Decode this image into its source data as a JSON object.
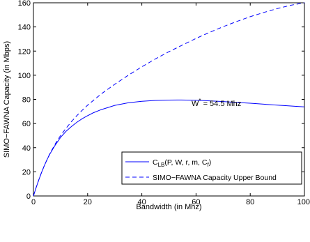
{
  "chart_data": {
    "type": "line",
    "xlabel": "Bandwidth (in Mhz)",
    "ylabel": "SIMO−FAWNA Capacity (in Mbps)",
    "xlim": [
      0,
      100
    ],
    "ylim": [
      0,
      160
    ],
    "xticks": [
      0,
      20,
      40,
      60,
      80,
      100
    ],
    "yticks": [
      0,
      20,
      40,
      60,
      80,
      100,
      120,
      140,
      160
    ],
    "grid": false,
    "legend_position": "lower-right",
    "series": [
      {
        "name": "C_LB(P, W, r, m, C_f)",
        "legend_main": "C",
        "legend_sub": "LB",
        "legend_rest": "(P, W, r, m, C",
        "legend_sub2": "f",
        "legend_close": ")",
        "style": "solid",
        "color": "#0000ff",
        "x": [
          0,
          1,
          2,
          3,
          4,
          5,
          6,
          8,
          10,
          12,
          14,
          16,
          18,
          20,
          22,
          25,
          30,
          35,
          40,
          45,
          50,
          54.5,
          60,
          65,
          70,
          75,
          80,
          85,
          90,
          95,
          100
        ],
        "y": [
          0,
          7,
          13.5,
          19.5,
          25,
          30,
          34.5,
          42,
          48.5,
          53.5,
          57.5,
          61,
          64,
          66.5,
          68.8,
          71.5,
          75,
          77.2,
          78.4,
          79.1,
          79.45,
          79.5,
          79.3,
          78.8,
          78.2,
          77.5,
          76.8,
          76,
          75.2,
          74.5,
          73.8
        ]
      },
      {
        "name": "SIMO−FAWNA Capacity Upper Bound",
        "style": "dashed",
        "color": "#0000ff",
        "x": [
          0,
          1,
          2,
          3,
          4,
          5,
          6,
          8,
          10,
          12,
          14,
          16,
          18,
          20,
          25,
          30,
          35,
          40,
          45,
          50,
          55,
          60,
          65,
          70,
          75,
          80,
          85,
          90,
          95,
          100
        ],
        "y": [
          0,
          7,
          13.5,
          19.5,
          25,
          30,
          34.8,
          43,
          50,
          56,
          61.5,
          66.5,
          71,
          75.2,
          84.5,
          92.5,
          100,
          107,
          113.5,
          119.5,
          125,
          130.5,
          135.5,
          140.2,
          144.5,
          148.5,
          152,
          155.2,
          158,
          160
        ]
      }
    ],
    "annotations": [
      {
        "text_main": "W",
        "text_sup": "*",
        "text_rest": " = 54.5 Mhz",
        "x": 54.5,
        "y": 79.5
      }
    ]
  }
}
